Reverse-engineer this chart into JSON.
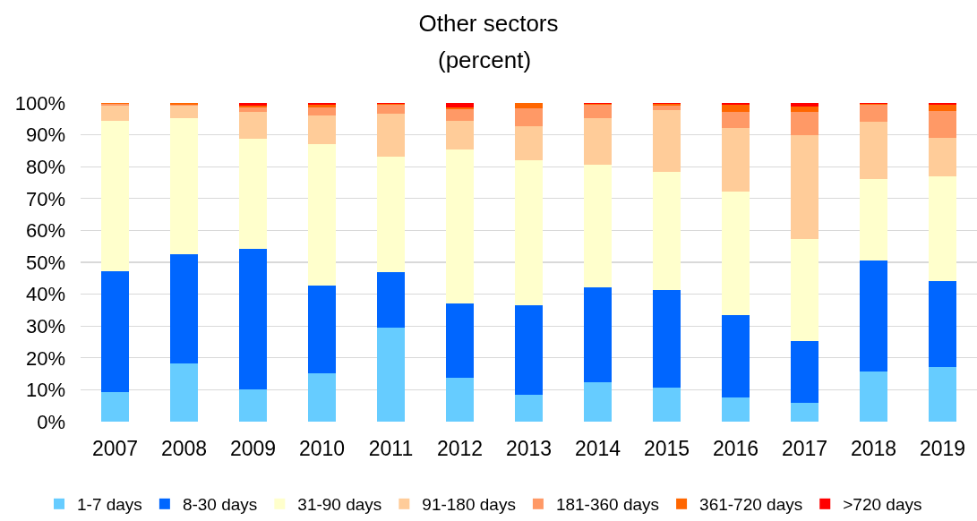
{
  "chart_data": {
    "type": "bar",
    "title": "Other sectors",
    "subtitle": "(percent)",
    "stacked": true,
    "categories": [
      "2007",
      "2008",
      "2009",
      "2010",
      "2011",
      "2012",
      "2013",
      "2014",
      "2015",
      "2016",
      "2017",
      "2018",
      "2019"
    ],
    "series": [
      {
        "name": "1-7 days",
        "color": "#66ccff",
        "values": [
          9.3,
          18.3,
          10.2,
          15.3,
          29.5,
          13.7,
          8.5,
          12.4,
          10.8,
          7.5,
          5.9,
          15.8,
          17.0
        ]
      },
      {
        "name": "8-30 days",
        "color": "#0066ff",
        "values": [
          37.9,
          34.3,
          43.9,
          27.5,
          17.4,
          23.3,
          27.9,
          29.8,
          30.6,
          26.0,
          19.5,
          34.8,
          27.1
        ]
      },
      {
        "name": "31-90 days",
        "color": "#ffffcc",
        "values": [
          47.3,
          42.5,
          34.6,
          44.2,
          36.3,
          48.5,
          45.6,
          38.4,
          36.9,
          38.6,
          31.8,
          25.4,
          32.8
        ]
      },
      {
        "name": "91-180 days",
        "color": "#ffcc99",
        "values": [
          4.6,
          4.0,
          8.6,
          9.1,
          13.3,
          9.0,
          10.8,
          14.7,
          19.5,
          20.1,
          32.8,
          18.1,
          12.2
        ]
      },
      {
        "name": "181-360 days",
        "color": "#ff9966",
        "values": [
          0.6,
          0.4,
          1.2,
          2.6,
          2.8,
          3.5,
          5.5,
          4.1,
          1.4,
          5.1,
          7.3,
          5.3,
          8.5
        ]
      },
      {
        "name": "361-720 days",
        "color": "#ff6600",
        "values": [
          0.3,
          0.5,
          0.6,
          0.8,
          0.4,
          0.7,
          1.7,
          0.4,
          0.6,
          2.2,
          1.6,
          0.3,
          1.9
        ]
      },
      {
        "name": ">720 days",
        "color": "#ff0000",
        "values": [
          0,
          0,
          0.9,
          0.5,
          0.3,
          1.3,
          0,
          0.2,
          0.2,
          0.5,
          1.1,
          0.3,
          0.5
        ]
      }
    ],
    "ylim": [
      0,
      100
    ],
    "yticks": [
      {
        "value": 0,
        "label": "0%"
      },
      {
        "value": 10,
        "label": "10%"
      },
      {
        "value": 20,
        "label": "20%"
      },
      {
        "value": 30,
        "label": "30%"
      },
      {
        "value": 40,
        "label": "40%"
      },
      {
        "value": 50,
        "label": "50%"
      },
      {
        "value": 60,
        "label": "60%"
      },
      {
        "value": 70,
        "label": "70%"
      },
      {
        "value": 80,
        "label": "80%"
      },
      {
        "value": 90,
        "label": "90%"
      },
      {
        "value": 100,
        "label": "100%"
      }
    ],
    "grid": "y",
    "legend": "bottom"
  }
}
